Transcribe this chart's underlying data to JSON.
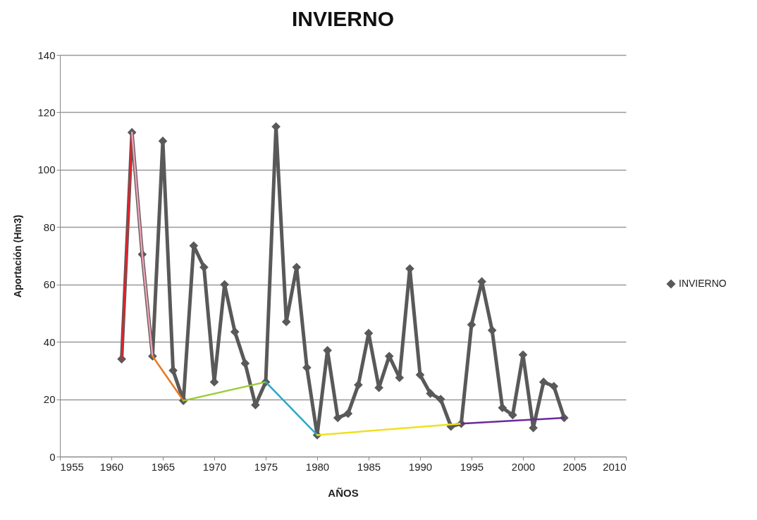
{
  "chart_data": {
    "type": "line",
    "title": "INVIERNO",
    "xlabel": "AÑOS",
    "ylabel": "Aportación (Hm3)",
    "x": [
      1961,
      1962,
      1963,
      1964,
      1965,
      1966,
      1967,
      1968,
      1969,
      1970,
      1971,
      1972,
      1973,
      1974,
      1975,
      1976,
      1977,
      1978,
      1979,
      1980,
      1981,
      1982,
      1983,
      1984,
      1985,
      1986,
      1987,
      1988,
      1989,
      1990,
      1991,
      1992,
      1993,
      1994,
      1995,
      1996,
      1997,
      1998,
      1999,
      2000,
      2001,
      2002,
      2003,
      2004
    ],
    "series": [
      {
        "name": "INVIERNO",
        "color": "#595959",
        "values": [
          34,
          113,
          70.5,
          35,
          110,
          30,
          19.5,
          73.5,
          66,
          26,
          60,
          43.5,
          32.5,
          18,
          26,
          115,
          47,
          66,
          31,
          7.5,
          37,
          13.5,
          15,
          25,
          43,
          24,
          35,
          27.5,
          65.5,
          28.5,
          22,
          20,
          10.5,
          11.5,
          46,
          61,
          44,
          17,
          14.5,
          35.5,
          10,
          26,
          24.5,
          13.5
        ]
      },
      {
        "type": "line",
        "color": "#e8202a",
        "marker": "none",
        "x": [
          1961,
          1962
        ],
        "values": [
          34,
          113
        ]
      },
      {
        "type": "line",
        "color": "#f0a0b4",
        "marker": "none",
        "x": [
          1962,
          1963,
          1964
        ],
        "values": [
          113,
          70.5,
          35
        ]
      },
      {
        "type": "line",
        "color": "#e87820",
        "marker": "none",
        "x": [
          1964,
          1967
        ],
        "values": [
          35,
          19.5
        ]
      },
      {
        "type": "line",
        "color": "#99cc33",
        "marker": "none",
        "x": [
          1967,
          1975
        ],
        "values": [
          19.5,
          26
        ]
      },
      {
        "type": "line",
        "color": "#2aa8c8",
        "marker": "none",
        "x": [
          1975,
          1980
        ],
        "values": [
          26,
          7.5
        ]
      },
      {
        "type": "line",
        "color": "#f0e020",
        "marker": "none",
        "x": [
          1980,
          1994
        ],
        "values": [
          7.5,
          11.5
        ]
      },
      {
        "type": "line",
        "color": "#6a2a9a",
        "marker": "none",
        "x": [
          1994,
          2004
        ],
        "values": [
          11.5,
          13.5
        ]
      }
    ],
    "xlim": [
      1955,
      2010
    ],
    "xticks": [
      1955,
      1960,
      1965,
      1970,
      1975,
      1980,
      1985,
      1990,
      1995,
      2000,
      2005,
      2010
    ],
    "ylim": [
      0,
      140
    ],
    "yticks": [
      0,
      20,
      40,
      60,
      80,
      100,
      120,
      140
    ],
    "grid": "y",
    "legend": "right",
    "marker": "diamond",
    "line_style": "solid"
  }
}
